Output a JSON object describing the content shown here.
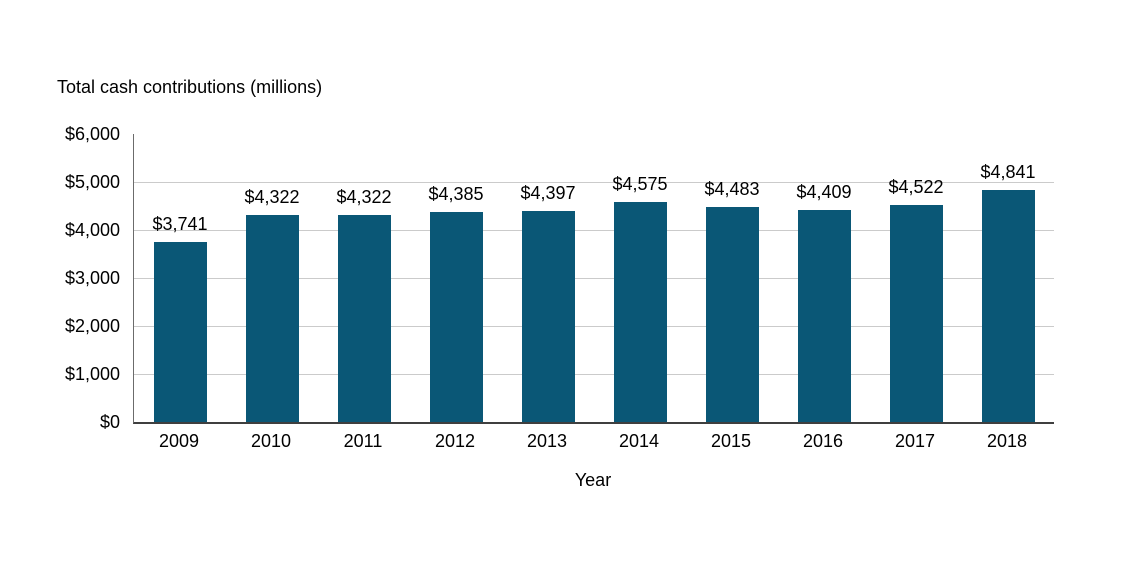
{
  "chart_data": {
    "type": "bar",
    "title": "Total cash contributions (millions)",
    "title_position": "top-left-above-y-axis",
    "xlabel": "Year",
    "ylabel": "",
    "categories": [
      "2009",
      "2010",
      "2011",
      "2012",
      "2013",
      "2014",
      "2015",
      "2016",
      "2017",
      "2018"
    ],
    "values": [
      3741,
      4322,
      4322,
      4385,
      4397,
      4575,
      4483,
      4409,
      4522,
      4841
    ],
    "bar_labels": [
      "$3,741",
      "$4,322",
      "$4,322",
      "$4,385",
      "$4,397",
      "$4,575",
      "$4,483",
      "$4,409",
      "$4,522",
      "$4,841"
    ],
    "ylim": [
      0,
      6000
    ],
    "ytick_values": [
      0,
      1000,
      2000,
      3000,
      4000,
      5000,
      6000
    ],
    "ytick_labels": [
      "$0",
      "$1,000",
      "$2,000",
      "$3,000",
      "$4,000",
      "$5,000",
      "$6,000"
    ],
    "grid": "horizontal",
    "legend": "none",
    "bar_color": "#0a5776",
    "gridline_color": "#cbcbcb",
    "y_axis_color": "#6b6b6b",
    "x_axis_color": "#3f3f3f",
    "text_color": "#000000",
    "background_color": "#ffffff"
  }
}
